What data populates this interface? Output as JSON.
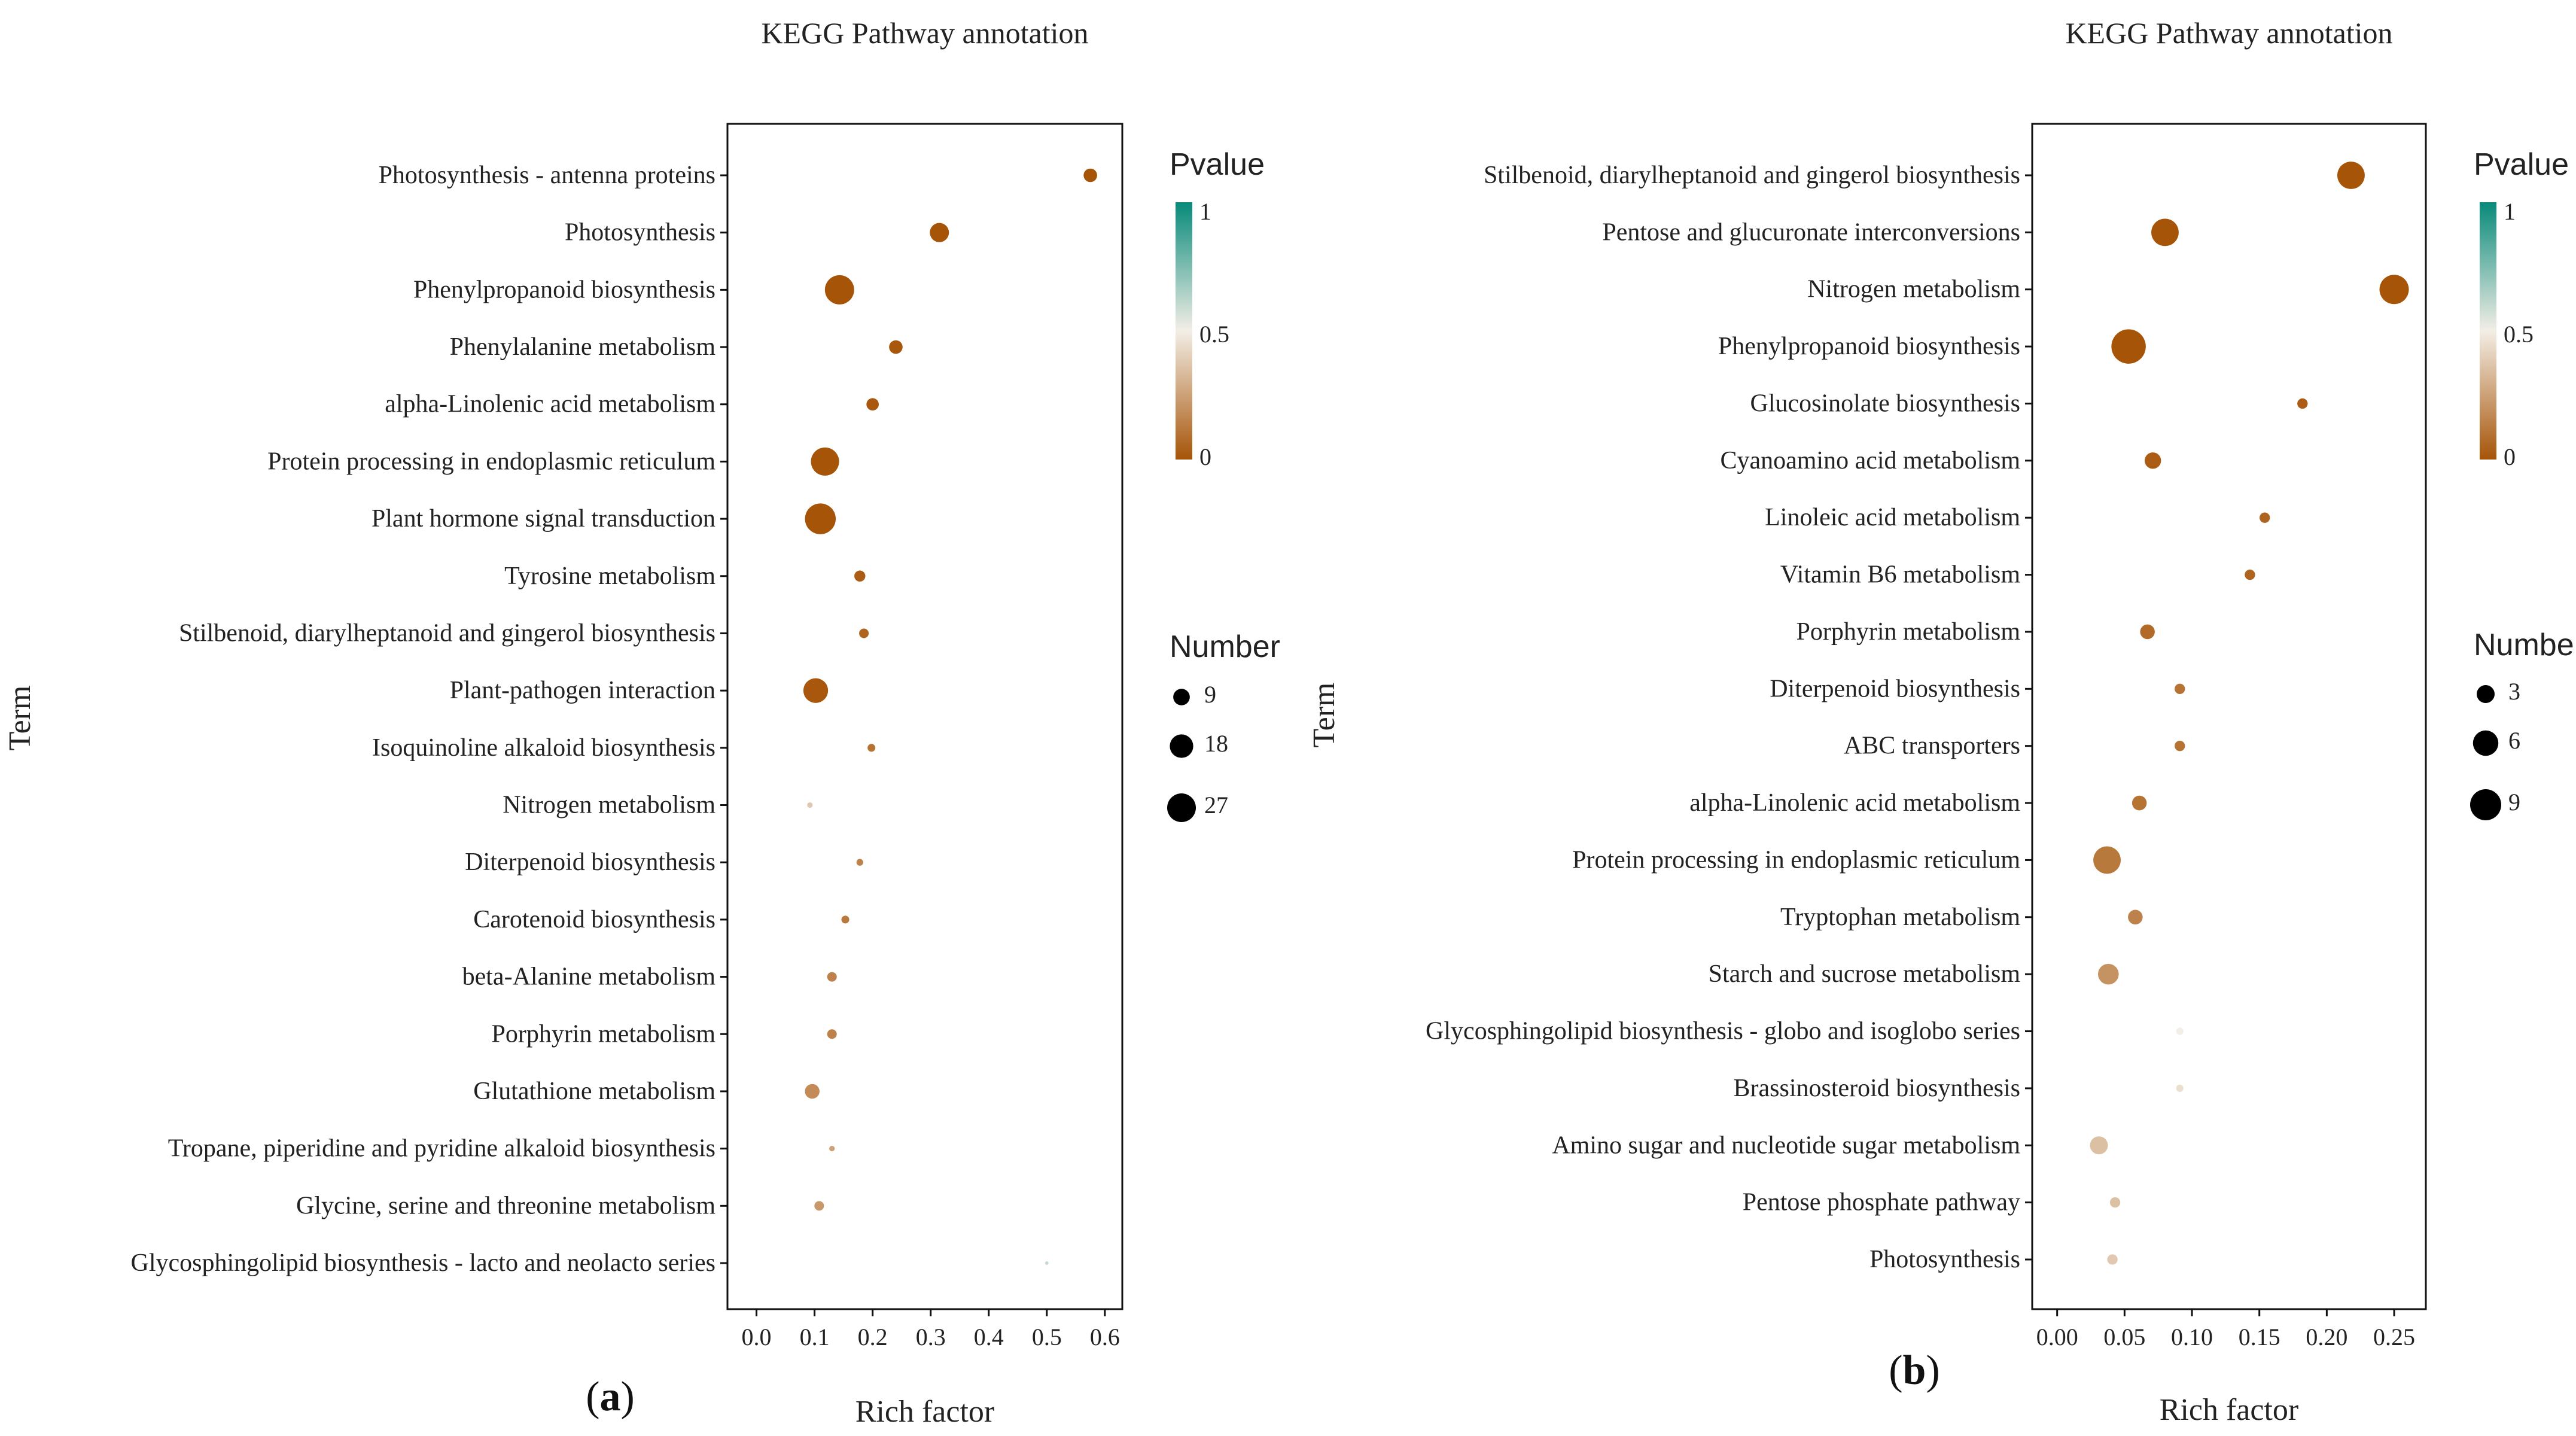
{
  "chart_data": [
    {
      "type": "scatter",
      "panel_label": "a",
      "title": "KEGG Pathway annotation",
      "xlabel": "Rich factor",
      "ylabel": "Term",
      "xlim": [
        -0.05,
        0.63
      ],
      "xticks": [
        "0.0",
        "0.1",
        "0.2",
        "0.3",
        "0.4",
        "0.5",
        "0.6"
      ],
      "xtick_values": [
        0.0,
        0.1,
        0.2,
        0.3,
        0.4,
        0.5,
        0.6
      ],
      "color_legend": {
        "title": "Pvalue",
        "labels": [
          "1",
          "0.5",
          "0"
        ],
        "low_color": "#a65408",
        "mid_color": "#f3eee6",
        "high_color": "#078a7a"
      },
      "size_legend": {
        "title": "Number",
        "labels": [
          "9",
          "18",
          "27"
        ],
        "values": [
          9,
          18,
          27
        ]
      },
      "points": [
        {
          "term": "Photosynthesis - antenna proteins",
          "rich_factor": 0.575,
          "count": 6,
          "pvalue": 0.0
        },
        {
          "term": "Photosynthesis",
          "rich_factor": 0.315,
          "count": 12,
          "pvalue": 0.0
        },
        {
          "term": "Phenylpropanoid biosynthesis",
          "rich_factor": 0.143,
          "count": 28,
          "pvalue": 0.0
        },
        {
          "term": "Phenylalanine metabolism",
          "rich_factor": 0.24,
          "count": 6,
          "pvalue": 0.01
        },
        {
          "term": "alpha-Linolenic acid metabolism",
          "rich_factor": 0.2,
          "count": 5,
          "pvalue": 0.01
        },
        {
          "term": "Protein processing in endoplasmic reticulum",
          "rich_factor": 0.118,
          "count": 26,
          "pvalue": 0.0
        },
        {
          "term": "Plant hormone signal transduction",
          "rich_factor": 0.11,
          "count": 31,
          "pvalue": 0.0
        },
        {
          "term": "Tyrosine metabolism",
          "rich_factor": 0.178,
          "count": 4,
          "pvalue": 0.03
        },
        {
          "term": "Stilbenoid, diarylheptanoid and gingerol biosynthesis",
          "rich_factor": 0.185,
          "count": 3,
          "pvalue": 0.05
        },
        {
          "term": "Plant-pathogen interaction",
          "rich_factor": 0.102,
          "count": 20,
          "pvalue": 0.01
        },
        {
          "term": "Isoquinoline alkaloid biosynthesis",
          "rich_factor": 0.198,
          "count": 2,
          "pvalue": 0.1
        },
        {
          "term": "Nitrogen metabolism",
          "rich_factor": 0.092,
          "count": 1,
          "pvalue": 0.38
        },
        {
          "term": "Diterpenoid biosynthesis",
          "rich_factor": 0.178,
          "count": 1.5,
          "pvalue": 0.15
        },
        {
          "term": "Carotenoid biosynthesis",
          "rich_factor": 0.153,
          "count": 2,
          "pvalue": 0.12
        },
        {
          "term": "beta-Alanine metabolism",
          "rich_factor": 0.13,
          "count": 3,
          "pvalue": 0.15
        },
        {
          "term": "Porphyrin metabolism",
          "rich_factor": 0.13,
          "count": 3,
          "pvalue": 0.15
        },
        {
          "term": "Glutathione metabolism",
          "rich_factor": 0.096,
          "count": 7,
          "pvalue": 0.18
        },
        {
          "term": "Tropane, piperidine and pyridine alkaloid biosynthesis",
          "rich_factor": 0.13,
          "count": 1,
          "pvalue": 0.25
        },
        {
          "term": "Glycine, serine and threonine metabolism",
          "rich_factor": 0.108,
          "count": 3,
          "pvalue": 0.22
        },
        {
          "term": "Glycosphingolipid biosynthesis - lacto and neolacto series",
          "rich_factor": 0.5,
          "count": 0.4,
          "pvalue": 0.6
        }
      ]
    },
    {
      "type": "scatter",
      "panel_label": "b",
      "title": "KEGG Pathway annotation",
      "xlabel": "Rich factor",
      "ylabel": "Term",
      "xlim": [
        -0.0185,
        0.2735
      ],
      "xticks": [
        "0.00",
        "0.05",
        "0.10",
        "0.15",
        "0.20",
        "0.25"
      ],
      "xtick_values": [
        0.0,
        0.05,
        0.1,
        0.15,
        0.2,
        0.25
      ],
      "color_legend": {
        "title": "Pvalue",
        "labels": [
          "1",
          "0.5",
          "0"
        ],
        "low_color": "#a65408",
        "mid_color": "#f3eee6",
        "high_color": "#078a7a"
      },
      "size_legend": {
        "title": "Number",
        "labels": [
          "3",
          "6",
          "9"
        ],
        "values": [
          3,
          6,
          9
        ]
      },
      "points": [
        {
          "term": "Stilbenoid, diarylheptanoid and gingerol biosynthesis",
          "rich_factor": 0.218,
          "count": 7,
          "pvalue": 0.0
        },
        {
          "term": "Pentose and glucuronate interconversions",
          "rich_factor": 0.08,
          "count": 7,
          "pvalue": 0.0
        },
        {
          "term": "Nitrogen metabolism",
          "rich_factor": 0.25,
          "count": 8,
          "pvalue": 0.0
        },
        {
          "term": "Phenylpropanoid biosynthesis",
          "rich_factor": 0.053,
          "count": 11,
          "pvalue": 0.0
        },
        {
          "term": "Glucosinolate biosynthesis",
          "rich_factor": 0.182,
          "count": 1,
          "pvalue": 0.03
        },
        {
          "term": "Cyanoamino acid metabolism",
          "rich_factor": 0.071,
          "count": 2.5,
          "pvalue": 0.03
        },
        {
          "term": "Linoleic acid metabolism",
          "rich_factor": 0.154,
          "count": 1,
          "pvalue": 0.05
        },
        {
          "term": "Vitamin B6 metabolism",
          "rich_factor": 0.143,
          "count": 1,
          "pvalue": 0.05
        },
        {
          "term": "Porphyrin metabolism",
          "rich_factor": 0.067,
          "count": 2,
          "pvalue": 0.07
        },
        {
          "term": "Diterpenoid biosynthesis",
          "rich_factor": 0.091,
          "count": 1,
          "pvalue": 0.1
        },
        {
          "term": "ABC transporters",
          "rich_factor": 0.091,
          "count": 1,
          "pvalue": 0.1
        },
        {
          "term": "alpha-Linolenic acid metabolism",
          "rich_factor": 0.061,
          "count": 2,
          "pvalue": 0.1
        },
        {
          "term": "Protein processing in endoplasmic reticulum",
          "rich_factor": 0.037,
          "count": 7,
          "pvalue": 0.12
        },
        {
          "term": "Tryptophan metabolism",
          "rich_factor": 0.058,
          "count": 2,
          "pvalue": 0.15
        },
        {
          "term": "Starch and sucrose metabolism",
          "rich_factor": 0.038,
          "count": 4,
          "pvalue": 0.2
        },
        {
          "term": "Glycosphingolipid biosynthesis - globo and isoglobo series",
          "rich_factor": 0.091,
          "count": 0.5,
          "pvalue": 0.5
        },
        {
          "term": "Brassinosteroid biosynthesis",
          "rich_factor": 0.091,
          "count": 0.5,
          "pvalue": 0.45
        },
        {
          "term": "Amino sugar and nucleotide sugar metabolism",
          "rich_factor": 0.031,
          "count": 3,
          "pvalue": 0.35
        },
        {
          "term": "Pentose phosphate pathway",
          "rich_factor": 0.043,
          "count": 1,
          "pvalue": 0.35
        },
        {
          "term": "Photosynthesis",
          "rich_factor": 0.041,
          "count": 1,
          "pvalue": 0.38
        }
      ]
    }
  ]
}
